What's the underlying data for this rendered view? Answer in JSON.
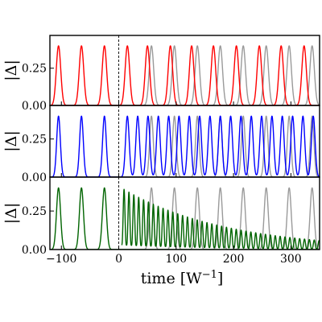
{
  "chart_data": [
    {
      "type": "line",
      "panel": "top",
      "ylabel": "|Δ|",
      "ylim": [
        0,
        0.47
      ],
      "yticks": [
        0.0,
        0.25
      ],
      "ytick_labels": [
        "0.00",
        "0.25"
      ],
      "xlim": [
        -120,
        350
      ],
      "vline_x": 0,
      "series": [
        {
          "color": "#ff0000",
          "kind": "pulses",
          "amplitude": 0.4,
          "width": 5.5,
          "centers": [
            -105,
            -65,
            -25,
            15,
            50,
            90,
            127,
            165,
            205,
            245,
            283,
            323
          ]
        },
        {
          "color": "#9a9a9a",
          "kind": "pulses",
          "amplitude": 0.4,
          "width": 5.5,
          "centers": [
            57,
            97,
            137,
            177,
            217,
            257,
            297,
            337
          ]
        }
      ]
    },
    {
      "type": "line",
      "panel": "middle",
      "ylabel": "|Δ|",
      "ylim": [
        0,
        0.47
      ],
      "yticks": [
        0.0,
        0.25
      ],
      "ytick_labels": [
        "0.00",
        "0.25"
      ],
      "xlim": [
        -120,
        350
      ],
      "vline_x": 0,
      "series": [
        {
          "color": "#0000ff",
          "kind": "pulses",
          "amplitude": 0.4,
          "width": 4.5,
          "centers": [
            -105,
            -65,
            -25,
            15,
            33,
            51,
            69,
            87,
            105,
            123,
            141,
            159,
            177,
            195,
            213,
            231,
            249,
            267,
            285,
            303,
            321,
            339
          ]
        },
        {
          "color": "#9a9a9a",
          "kind": "pulses",
          "amplitude": 0.4,
          "width": 4.5,
          "centers": [
            57,
            97,
            137,
            177,
            217,
            257,
            297,
            337
          ]
        }
      ]
    },
    {
      "type": "line",
      "panel": "bottom",
      "ylabel": "|Δ|",
      "xlabel": "time [W^{-1}]",
      "ylim": [
        0,
        0.47
      ],
      "yticks": [
        0.0,
        0.25
      ],
      "ytick_labels": [
        "0.00",
        "0.25"
      ],
      "xlim": [
        -120,
        350
      ],
      "xticks": [
        -100,
        0,
        100,
        200,
        300
      ],
      "xtick_labels": [
        "−100",
        "0",
        "100",
        "200",
        "300"
      ],
      "vline_x": 0,
      "series": [
        {
          "color": "#006400",
          "kind": "pulses",
          "amplitude": 0.4,
          "width": 5,
          "centers": [
            -105,
            -65,
            -25
          ]
        },
        {
          "color": "#006400",
          "kind": "decaying-oscillation",
          "start": 5,
          "period": 8.5,
          "peak_start": 0.4,
          "decay_time": 180,
          "floor_offset": 0.03
        },
        {
          "color": "#9a9a9a",
          "kind": "pulses",
          "amplitude": 0.4,
          "width": 5,
          "centers": [
            57,
            97,
            137,
            177,
            217,
            257,
            297,
            337
          ]
        }
      ]
    }
  ]
}
